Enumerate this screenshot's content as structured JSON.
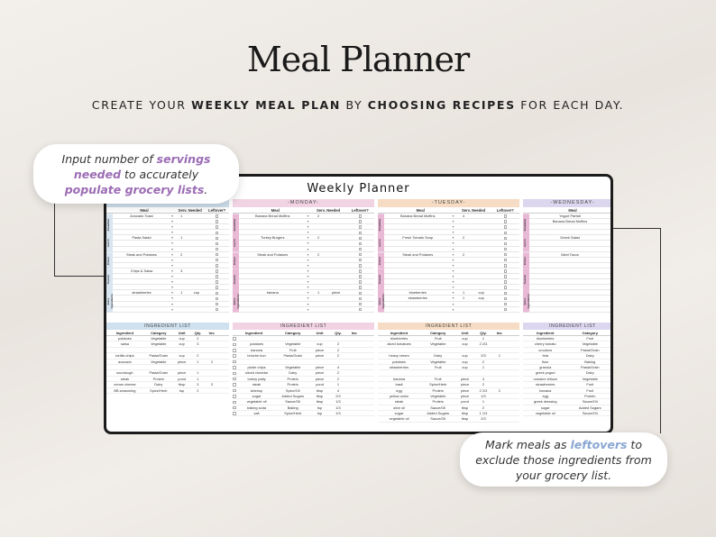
{
  "header": {
    "title": "Meal Planner",
    "subtitle_parts": [
      "CREATE YOUR ",
      "WEEKLY MEAL PLAN",
      " BY ",
      "CHOOSING RECIPES",
      " FOR EACH DAY."
    ]
  },
  "callouts": {
    "servings": {
      "a": "Input number of ",
      "b": "servings needed",
      "c": " to accurately ",
      "d": "populate grocery lists",
      "e": "."
    },
    "leftovers": {
      "a": "Mark meals as ",
      "b": "leftovers",
      "c": " to exclude those ingredients from your grocery list."
    }
  },
  "colors": {
    "sunday": "#cfe0ee",
    "monday": "#f1d3e3",
    "tuesday": "#f6dcc4",
    "wednesday": "#ddd6ef",
    "sidebar_purple": "#e9b8d5",
    "accent_purple": "#9b6cb4",
    "accent_blue": "#8aa6d2"
  },
  "planner": {
    "title": "Weekly Planner",
    "columns": {
      "meal": "Meal",
      "servings": "Serv. Needed",
      "leftover": "Leftover?"
    },
    "sections": [
      "Breakfast",
      "Lunch",
      "Dinner",
      "Snacks",
      "Extra Ingredients"
    ],
    "days": [
      {
        "name": "",
        "meals": [
          {
            "m": "Avocado Toast",
            "s": "1",
            "u": ""
          },
          {
            "m": "",
            "s": "",
            "u": ""
          },
          {
            "m": "",
            "s": "",
            "u": ""
          },
          {
            "m": "",
            "s": "",
            "u": ""
          },
          {
            "m": "Pasta Salad",
            "s": "1",
            "u": ""
          },
          {
            "m": "",
            "s": "",
            "u": ""
          },
          {
            "m": "",
            "s": "",
            "u": ""
          },
          {
            "m": "Steak and Potatoes",
            "s": "2",
            "u": ""
          },
          {
            "m": "",
            "s": "",
            "u": ""
          },
          {
            "m": "",
            "s": "",
            "u": ""
          },
          {
            "m": "Chips & Salsa",
            "s": "3",
            "u": ""
          },
          {
            "m": "",
            "s": "",
            "u": ""
          },
          {
            "m": "",
            "s": "",
            "u": ""
          },
          {
            "m": "",
            "s": "",
            "u": ""
          },
          {
            "m": "strawberries",
            "s": "1",
            "u": "cup"
          },
          {
            "m": "",
            "s": "",
            "u": ""
          },
          {
            "m": "",
            "s": "",
            "u": ""
          },
          {
            "m": "",
            "s": "",
            "u": ""
          }
        ]
      },
      {
        "name": "-MONDAY-",
        "meals": [
          {
            "m": "Banana Bread Muffins",
            "s": "2",
            "u": ""
          },
          {
            "m": "",
            "s": "",
            "u": ""
          },
          {
            "m": "",
            "s": "",
            "u": ""
          },
          {
            "m": "",
            "s": "",
            "u": ""
          },
          {
            "m": "Turkey Burgers",
            "s": "2",
            "u": ""
          },
          {
            "m": "",
            "s": "",
            "u": ""
          },
          {
            "m": "",
            "s": "",
            "u": ""
          },
          {
            "m": "Steak and Potatoes",
            "s": "2",
            "u": ""
          },
          {
            "m": "",
            "s": "",
            "u": ""
          },
          {
            "m": "",
            "s": "",
            "u": ""
          },
          {
            "m": "",
            "s": "",
            "u": ""
          },
          {
            "m": "",
            "s": "",
            "u": ""
          },
          {
            "m": "",
            "s": "",
            "u": ""
          },
          {
            "m": "",
            "s": "",
            "u": ""
          },
          {
            "m": "banana",
            "s": "1",
            "u": "piece"
          },
          {
            "m": "",
            "s": "",
            "u": ""
          },
          {
            "m": "",
            "s": "",
            "u": ""
          },
          {
            "m": "",
            "s": "",
            "u": ""
          }
        ]
      },
      {
        "name": "-TUESDAY-",
        "meals": [
          {
            "m": "Banana Bread Muffins",
            "s": "4",
            "u": ""
          },
          {
            "m": "",
            "s": "",
            "u": ""
          },
          {
            "m": "",
            "s": "",
            "u": ""
          },
          {
            "m": "",
            "s": "",
            "u": ""
          },
          {
            "m": "Fresh Tomato Soup",
            "s": "2",
            "u": ""
          },
          {
            "m": "",
            "s": "",
            "u": ""
          },
          {
            "m": "",
            "s": "",
            "u": ""
          },
          {
            "m": "Steak and Potatoes",
            "s": "2",
            "u": ""
          },
          {
            "m": "",
            "s": "",
            "u": ""
          },
          {
            "m": "",
            "s": "",
            "u": ""
          },
          {
            "m": "",
            "s": "",
            "u": ""
          },
          {
            "m": "",
            "s": "",
            "u": ""
          },
          {
            "m": "",
            "s": "",
            "u": ""
          },
          {
            "m": "",
            "s": "",
            "u": ""
          },
          {
            "m": "blueberries",
            "s": "1",
            "u": "cup"
          },
          {
            "m": "strawberries",
            "s": "1",
            "u": "cup"
          },
          {
            "m": "",
            "s": "",
            "u": ""
          },
          {
            "m": "",
            "s": "",
            "u": ""
          }
        ]
      },
      {
        "name": "-WEDNESDAY-",
        "meals": [
          {
            "m": "Yogurt Parfait",
            "s": "",
            "u": ""
          },
          {
            "m": "Banana Bread Muffins",
            "s": "",
            "u": ""
          },
          {
            "m": "",
            "s": "",
            "u": ""
          },
          {
            "m": "",
            "s": "",
            "u": ""
          },
          {
            "m": "Greek Salad",
            "s": "",
            "u": ""
          },
          {
            "m": "",
            "s": "",
            "u": ""
          },
          {
            "m": "",
            "s": "",
            "u": ""
          },
          {
            "m": "Mahi Tacos",
            "s": "",
            "u": ""
          },
          {
            "m": "",
            "s": "",
            "u": ""
          },
          {
            "m": "",
            "s": "",
            "u": ""
          },
          {
            "m": "",
            "s": "",
            "u": ""
          },
          {
            "m": "",
            "s": "",
            "u": ""
          },
          {
            "m": "",
            "s": "",
            "u": ""
          },
          {
            "m": "",
            "s": "",
            "u": ""
          },
          {
            "m": "",
            "s": "",
            "u": ""
          },
          {
            "m": "",
            "s": "",
            "u": ""
          },
          {
            "m": "",
            "s": "",
            "u": ""
          },
          {
            "m": "",
            "s": "",
            "u": ""
          }
        ]
      }
    ],
    "ingredients": {
      "title": "INGREDIENT LIST",
      "cols": [
        "Ingredient",
        "Category",
        "Unit",
        "Qty.",
        "Inv."
      ],
      "lists": [
        [
          [
            "potatoes",
            "Vegetable",
            "cup",
            "2",
            ""
          ],
          [
            "salsa",
            "Vegetable",
            "cup",
            "3",
            ""
          ],
          [
            "",
            "",
            "",
            "",
            ""
          ],
          [
            "tortilla chips",
            "Pasta/Grain",
            "cup",
            "2",
            ""
          ],
          [
            "avocado",
            "Vegetable",
            "piece",
            "1",
            "2"
          ],
          [
            "",
            "",
            "",
            "",
            ""
          ],
          [
            "sourdough",
            "Pasta/Grain",
            "piece",
            "1",
            ""
          ],
          [
            "steak",
            "Protein",
            "pond",
            "1",
            ""
          ],
          [
            "cream cheese",
            "Dairy",
            "tbsp",
            "3",
            "3"
          ],
          [
            "BB seasoning",
            "Spice/Herb",
            "tsp",
            "2",
            ""
          ]
        ],
        [
          [
            "",
            "",
            "",
            "",
            ""
          ],
          [
            "potatoes",
            "Vegetable",
            "cup",
            "2",
            ""
          ],
          [
            "banana",
            "Fruit",
            "piece",
            "2",
            ""
          ],
          [
            "brioche bun",
            "Pasta/Grain",
            "piece",
            "2",
            ""
          ],
          [
            "",
            "",
            "",
            "",
            ""
          ],
          [
            "pickle chips",
            "Vegetable",
            "piece",
            "4",
            ""
          ],
          [
            "sliced cheddar",
            "Dairy",
            "piece",
            "2",
            ""
          ],
          [
            "turkey patty",
            "Protein",
            "piece",
            "2",
            ""
          ],
          [
            "steak",
            "Protein",
            "pond",
            "1",
            ""
          ],
          [
            "ketchup",
            "Spice/Oil",
            "tbsp",
            "4",
            ""
          ],
          [
            "sugar",
            "Added Sugars",
            "tbsp",
            "2/3",
            ""
          ],
          [
            "vegetable oil",
            "Sauce/Oil",
            "tbsp",
            "1/3",
            ""
          ],
          [
            "baking soda",
            "Baking",
            "tsp",
            "1/3",
            ""
          ],
          [
            "salt",
            "Spice/Herb",
            "tsp",
            "1/3",
            ""
          ]
        ],
        [
          [
            "blueberries",
            "Fruit",
            "cup",
            "1",
            ""
          ],
          [
            "diced tomatoes",
            "Vegetable",
            "cup",
            "2 2/3",
            ""
          ],
          [
            "",
            "",
            "",
            "",
            ""
          ],
          [
            "heavy cream",
            "Dairy",
            "cup",
            "2/3",
            "1"
          ],
          [
            "potatoes",
            "Vegetable",
            "cup",
            "2",
            ""
          ],
          [
            "strawberries",
            "Fruit",
            "cup",
            "1",
            ""
          ],
          [
            "",
            "",
            "",
            "",
            ""
          ],
          [
            "banana",
            "Fruit",
            "piece",
            "4",
            ""
          ],
          [
            "basil",
            "Spice/Herb",
            "piece",
            "2",
            ""
          ],
          [
            "egg",
            "Protein",
            "piece",
            "2 2/3",
            "2"
          ],
          [
            "yellow onion",
            "Vegetable",
            "piece",
            "1/3",
            ""
          ],
          [
            "steak",
            "Protein",
            "pond",
            "1",
            ""
          ],
          [
            "olive oil",
            "Sauce/Oil",
            "tbsp",
            "2",
            ""
          ],
          [
            "sugar",
            "Added Sugars",
            "tbsp",
            "1 1/3",
            ""
          ],
          [
            "vegetable oil",
            "Sauce/Oil",
            "tbsp",
            "2/3",
            ""
          ]
        ],
        [
          [
            "blueberries",
            "Fruit",
            ""
          ],
          [
            "cherry tomato",
            "Vegetable",
            ""
          ],
          [
            "croutons",
            "Pasta/Grain",
            ""
          ],
          [
            "feta",
            "Dairy",
            ""
          ],
          [
            "flour",
            "Baking",
            ""
          ],
          [
            "granola",
            "Pasta/Grain",
            ""
          ],
          [
            "greek yogurt",
            "Dairy",
            ""
          ],
          [
            "romaine lettuce",
            "Vegetable",
            ""
          ],
          [
            "strawberries",
            "Fruit",
            ""
          ],
          [
            "banana",
            "Fruit",
            ""
          ],
          [
            "egg",
            "Protein",
            ""
          ],
          [
            "greek dressing",
            "Sauce/Oil",
            ""
          ],
          [
            "sugar",
            "Added Sugars",
            ""
          ],
          [
            "vegetable oil",
            "Sauce/Oil",
            ""
          ]
        ]
      ]
    }
  }
}
